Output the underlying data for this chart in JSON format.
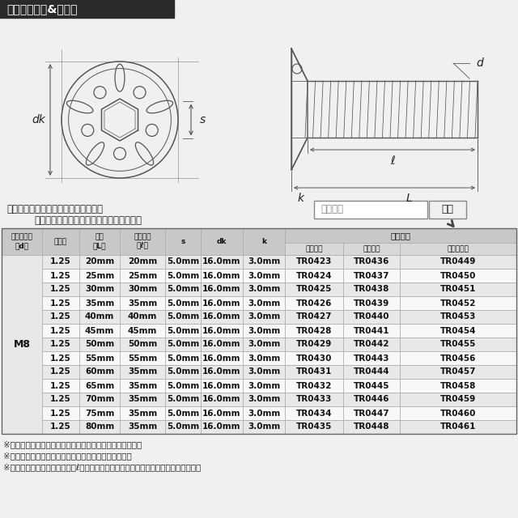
{
  "title": "ラインアップ&サイズ",
  "title_bg": "#2a2a2a",
  "title_color": "#ffffff",
  "search_label": "商品番号",
  "search_btn": "検索",
  "store_text1": "ストア内検索に商品番号を入力すると",
  "store_text2": "お探しの商品に素早くアクセスできます。",
  "header1": [
    "ネジの呼び\n（d）",
    "ピッチ",
    "長さ\n（L）",
    "ネジ長さ\n（ℓ）",
    "s",
    "dk",
    "k"
  ],
  "header2_main": "当店品番",
  "header2_sub": [
    "シルバー",
    "ゴールド",
    "焼きチタン"
  ],
  "left_label": "M8",
  "rows": [
    [
      "1.25",
      "20mm",
      "20mm",
      "5.0mm",
      "16.0mm",
      "3.0mm",
      "TR0423",
      "TR0436",
      "TR0449"
    ],
    [
      "1.25",
      "25mm",
      "25mm",
      "5.0mm",
      "16.0mm",
      "3.0mm",
      "TR0424",
      "TR0437",
      "TR0450"
    ],
    [
      "1.25",
      "30mm",
      "30mm",
      "5.0mm",
      "16.0mm",
      "3.0mm",
      "TR0425",
      "TR0438",
      "TR0451"
    ],
    [
      "1.25",
      "35mm",
      "35mm",
      "5.0mm",
      "16.0mm",
      "3.0mm",
      "TR0426",
      "TR0439",
      "TR0452"
    ],
    [
      "1.25",
      "40mm",
      "40mm",
      "5.0mm",
      "16.0mm",
      "3.0mm",
      "TR0427",
      "TR0440",
      "TR0453"
    ],
    [
      "1.25",
      "45mm",
      "45mm",
      "5.0mm",
      "16.0mm",
      "3.0mm",
      "TR0428",
      "TR0441",
      "TR0454"
    ],
    [
      "1.25",
      "50mm",
      "50mm",
      "5.0mm",
      "16.0mm",
      "3.0mm",
      "TR0429",
      "TR0442",
      "TR0455"
    ],
    [
      "1.25",
      "55mm",
      "55mm",
      "5.0mm",
      "16.0mm",
      "3.0mm",
      "TR0430",
      "TR0443",
      "TR0456"
    ],
    [
      "1.25",
      "60mm",
      "35mm",
      "5.0mm",
      "16.0mm",
      "3.0mm",
      "TR0431",
      "TR0444",
      "TR0457"
    ],
    [
      "1.25",
      "65mm",
      "35mm",
      "5.0mm",
      "16.0mm",
      "3.0mm",
      "TR0432",
      "TR0445",
      "TR0458"
    ],
    [
      "1.25",
      "70mm",
      "35mm",
      "5.0mm",
      "16.0mm",
      "3.0mm",
      "TR0433",
      "TR0446",
      "TR0459"
    ],
    [
      "1.25",
      "75mm",
      "35mm",
      "5.0mm",
      "16.0mm",
      "3.0mm",
      "TR0434",
      "TR0447",
      "TR0460"
    ],
    [
      "1.25",
      "80mm",
      "35mm",
      "5.0mm",
      "16.0mm",
      "3.0mm",
      "TR0435",
      "TR0448",
      "TR0461"
    ]
  ],
  "notes": [
    "※記載の重量は平均値です。個体により誤差がございます。",
    "※虹色は個体差により着色が異なる場合がございます。",
    "※製造過程の都合でネジ長さ（ℓ）が変わる場合がございます。予めご了承ください。"
  ],
  "bg_color": "#f0f0f0",
  "table_header_bg": "#c8c8c8",
  "table_subheader_bg": "#d8d8d8",
  "table_row_even": "#e8e8e8",
  "table_row_odd": "#f8f8f8",
  "table_border": "#aaaaaa",
  "table_header_color": "#111111",
  "diagram_line_color": "#555555",
  "diagram_bg": "#f0f0f0"
}
